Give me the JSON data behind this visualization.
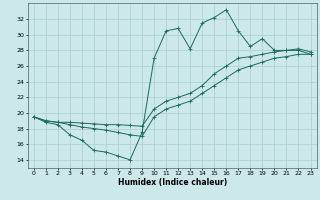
{
  "xlabel": "Humidex (Indice chaleur)",
  "xlim": [
    -0.5,
    23.5
  ],
  "ylim": [
    13,
    34
  ],
  "yticks": [
    14,
    16,
    18,
    20,
    22,
    24,
    26,
    28,
    30,
    32
  ],
  "xticks": [
    0,
    1,
    2,
    3,
    4,
    5,
    6,
    7,
    8,
    9,
    10,
    11,
    12,
    13,
    14,
    15,
    16,
    17,
    18,
    19,
    20,
    21,
    22,
    23
  ],
  "bg_color": "#cce8e8",
  "line_color": "#1a6b5a",
  "grid_color": "#aacece",
  "curves": [
    {
      "x": [
        0,
        1,
        2,
        3,
        4,
        5,
        6,
        7,
        8,
        9,
        10,
        11,
        12,
        13,
        14,
        15,
        16,
        17,
        18,
        19,
        20,
        21,
        22,
        23
      ],
      "y": [
        19.5,
        18.8,
        18.5,
        17.2,
        16.5,
        15.2,
        15.0,
        14.5,
        14.0,
        17.5,
        27.0,
        30.5,
        30.8,
        28.2,
        31.5,
        32.2,
        33.2,
        30.5,
        28.5,
        29.5,
        28.0,
        28.0,
        28.0,
        27.5
      ]
    },
    {
      "x": [
        0,
        1,
        2,
        3,
        4,
        5,
        6,
        7,
        8,
        9,
        10,
        11,
        12,
        13,
        14,
        15,
        16,
        17,
        18,
        19,
        20,
        21,
        22,
        23
      ],
      "y": [
        19.5,
        19.0,
        18.8,
        18.8,
        18.7,
        18.6,
        18.5,
        18.5,
        18.4,
        18.3,
        20.5,
        21.5,
        22.0,
        22.5,
        23.5,
        25.0,
        26.0,
        27.0,
        27.2,
        27.5,
        27.8,
        28.0,
        28.2,
        27.8
      ]
    },
    {
      "x": [
        0,
        1,
        2,
        3,
        4,
        5,
        6,
        7,
        8,
        9,
        10,
        11,
        12,
        13,
        14,
        15,
        16,
        17,
        18,
        19,
        20,
        21,
        22,
        23
      ],
      "y": [
        19.5,
        19.0,
        18.8,
        18.5,
        18.2,
        18.0,
        17.8,
        17.5,
        17.2,
        17.0,
        19.5,
        20.5,
        21.0,
        21.5,
        22.5,
        23.5,
        24.5,
        25.5,
        26.0,
        26.5,
        27.0,
        27.2,
        27.5,
        27.5
      ]
    }
  ]
}
